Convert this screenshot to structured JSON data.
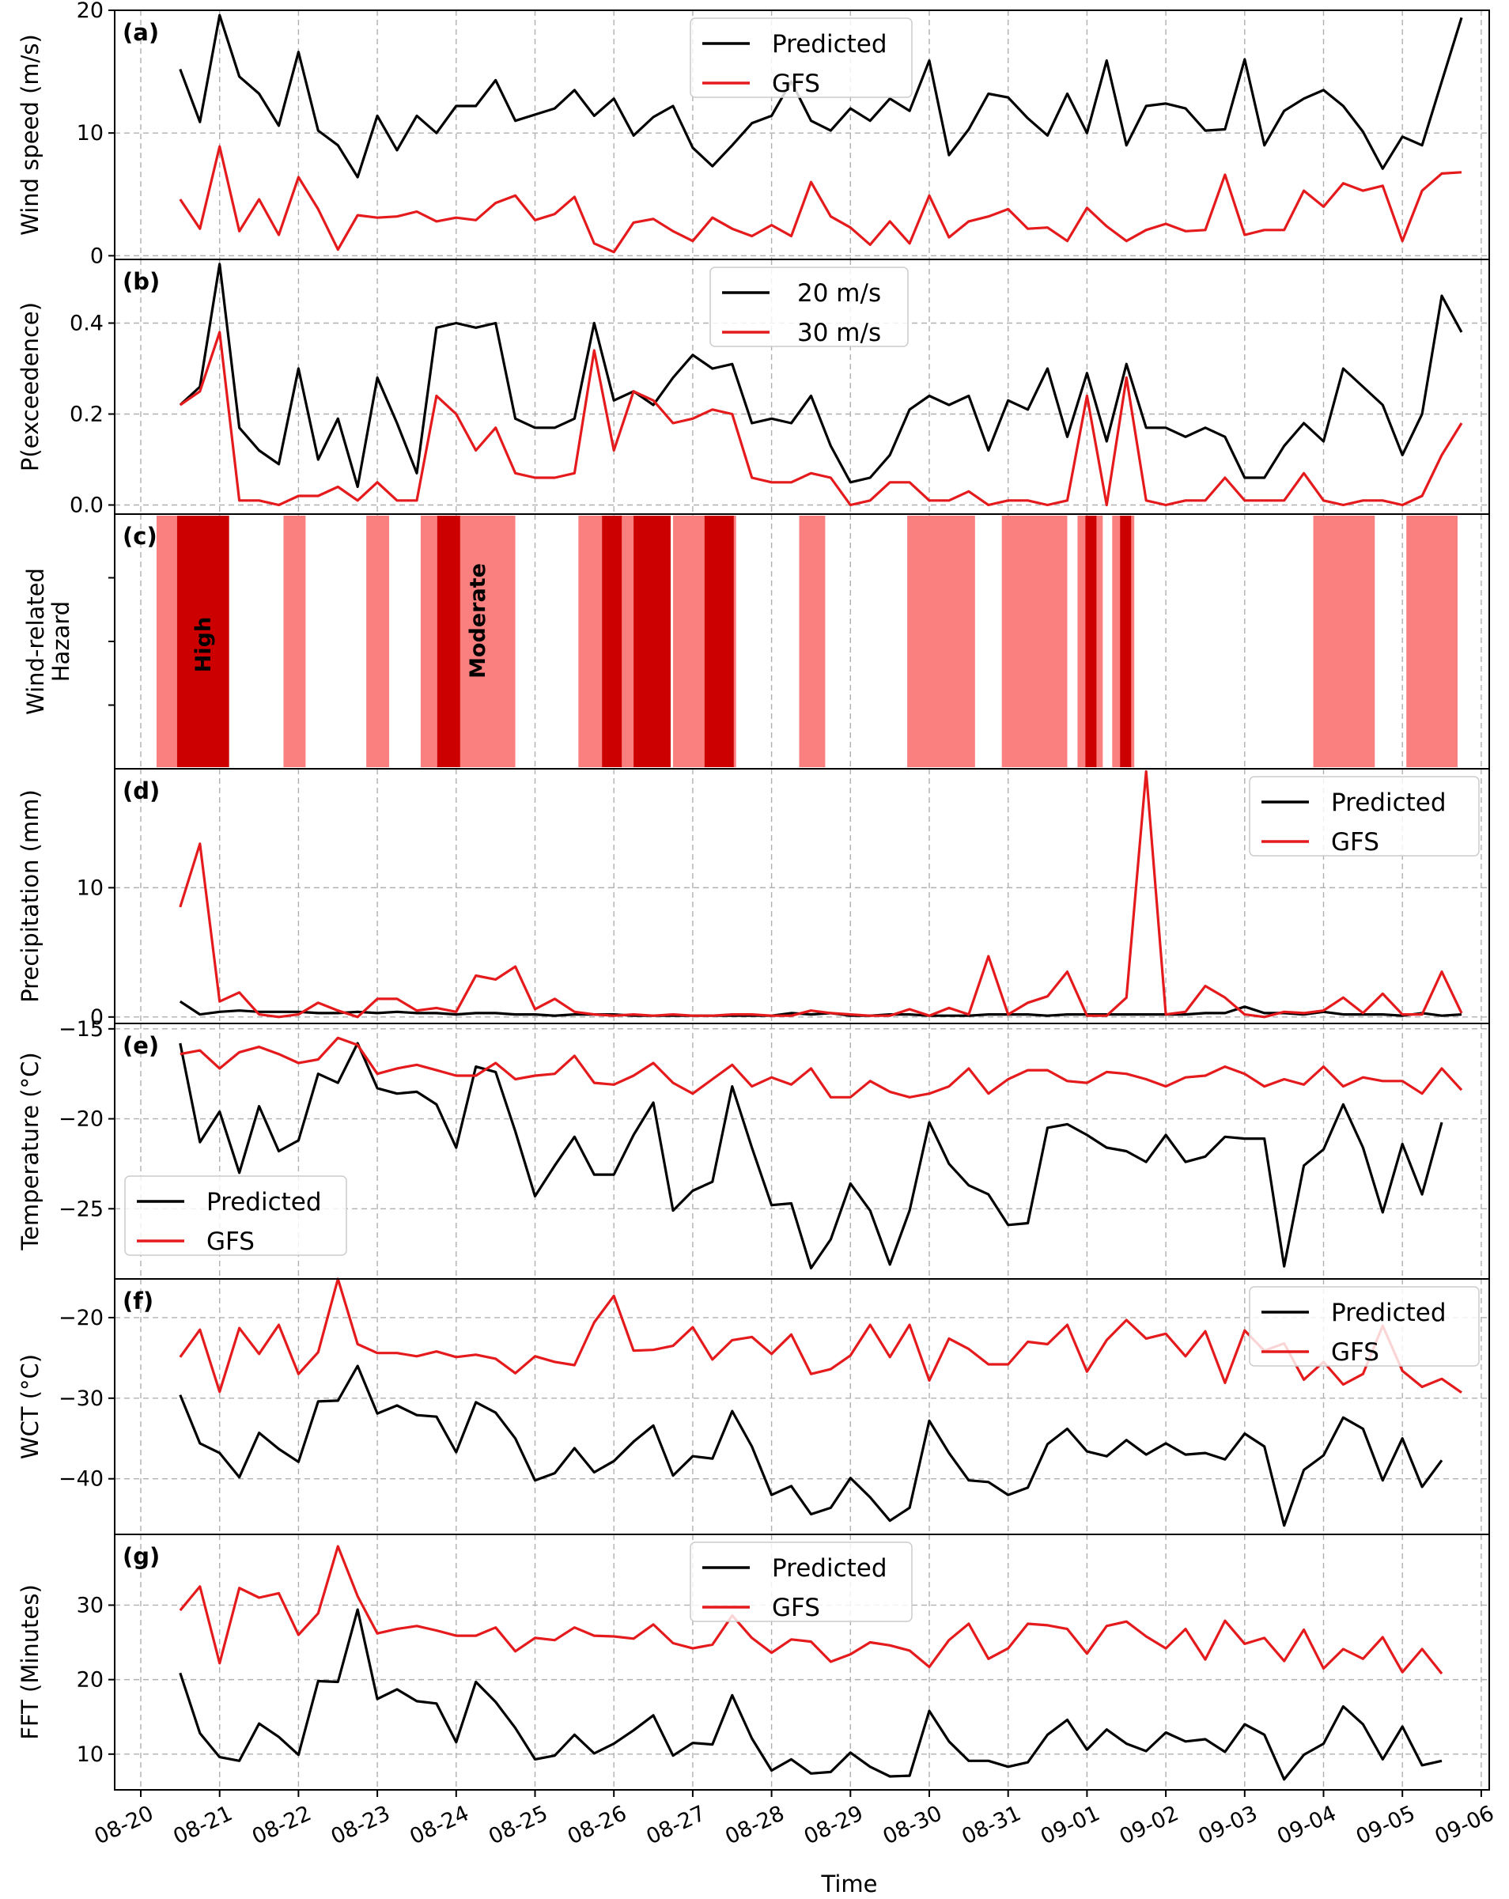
{
  "x_axis": {
    "label": "Time",
    "ticks": [
      "08-20",
      "08-21",
      "08-22",
      "08-23",
      "08-24",
      "08-25",
      "08-26",
      "08-27",
      "08-28",
      "08-29",
      "08-30",
      "08-31",
      "09-01",
      "09-02",
      "09-03",
      "09-04",
      "09-05",
      "09-06"
    ]
  },
  "colors": {
    "predicted": "#000000",
    "gfs": "#e41a1c",
    "hazard_moderate": "#fa8080",
    "hazard_high": "#cc0000"
  },
  "chart_data": [
    {
      "panel": "(a)",
      "type": "line",
      "ylabel": "Wind speed (m/s)",
      "ylim": [
        -0.3,
        20
      ],
      "yticks": [
        0,
        10,
        20
      ],
      "legend_position": "top-center",
      "x_start": "08-20 12:00",
      "x_step_hours": 6,
      "series": [
        {
          "name": "Predicted",
          "color": "#000000",
          "values": [
            15.2,
            10.9,
            19.6,
            14.6,
            13.2,
            10.6,
            16.6,
            10.2,
            9.0,
            6.4,
            11.4,
            8.6,
            11.4,
            10.0,
            12.2,
            12.2,
            14.3,
            11.0,
            11.5,
            12.0,
            13.5,
            11.4,
            12.8,
            9.8,
            11.3,
            12.2,
            8.8,
            7.3,
            9.0,
            10.8,
            11.4,
            14.2,
            11.0,
            10.2,
            12.0,
            11.0,
            12.8,
            11.8,
            15.9,
            8.2,
            10.3,
            13.2,
            12.9,
            11.2,
            9.8,
            13.2,
            10.0,
            15.9,
            9.0,
            12.2,
            12.4,
            12.0,
            10.2,
            10.3,
            16.0,
            9.0,
            11.8,
            12.8,
            13.5,
            12.2,
            10.1,
            7.1,
            9.7,
            9.0,
            14.2,
            19.4
          ]
        },
        {
          "name": "GFS",
          "color": "#e41a1c",
          "values": [
            4.6,
            2.2,
            8.9,
            2.0,
            4.6,
            1.7,
            6.4,
            3.8,
            0.5,
            3.3,
            3.1,
            3.2,
            3.6,
            2.8,
            3.1,
            2.9,
            4.3,
            4.9,
            2.9,
            3.4,
            4.8,
            1.0,
            0.3,
            2.7,
            3.0,
            2.0,
            1.2,
            3.1,
            2.2,
            1.6,
            2.5,
            1.6,
            6.0,
            3.2,
            2.3,
            0.9,
            2.8,
            1.0,
            4.9,
            1.5,
            2.8,
            3.2,
            3.8,
            2.2,
            2.3,
            1.2,
            3.9,
            2.4,
            1.2,
            2.1,
            2.6,
            2.0,
            2.1,
            6.6,
            1.7,
            2.1,
            2.1,
            5.3,
            4.0,
            5.9,
            5.3,
            5.7,
            1.2,
            5.3,
            6.7,
            6.8
          ]
        }
      ]
    },
    {
      "panel": "(b)",
      "type": "line",
      "ylabel": "P(exceedence)",
      "ylim": [
        -0.02,
        0.54
      ],
      "yticks": [
        0.0,
        0.2,
        0.4
      ],
      "ytick_labels": [
        "0.0",
        "0.2",
        "0.4"
      ],
      "legend_position": "top-center",
      "x_start": "08-20 12:00",
      "x_step_hours": 6,
      "series": [
        {
          "name": "20 m/s",
          "color": "#000000",
          "values": [
            0.22,
            0.26,
            0.53,
            0.17,
            0.12,
            0.09,
            0.3,
            0.1,
            0.19,
            0.04,
            0.28,
            0.18,
            0.07,
            0.39,
            0.4,
            0.39,
            0.4,
            0.19,
            0.17,
            0.17,
            0.19,
            0.4,
            0.23,
            0.25,
            0.22,
            0.28,
            0.33,
            0.3,
            0.31,
            0.18,
            0.19,
            0.18,
            0.24,
            0.13,
            0.05,
            0.06,
            0.11,
            0.21,
            0.24,
            0.22,
            0.24,
            0.12,
            0.23,
            0.21,
            0.3,
            0.15,
            0.29,
            0.14,
            0.31,
            0.17,
            0.17,
            0.15,
            0.17,
            0.15,
            0.06,
            0.06,
            0.13,
            0.18,
            0.14,
            0.3,
            0.26,
            0.22,
            0.11,
            0.2,
            0.46,
            0.38
          ]
        },
        {
          "name": "30 m/s",
          "color": "#e41a1c",
          "values": [
            0.22,
            0.25,
            0.38,
            0.01,
            0.01,
            0.0,
            0.02,
            0.02,
            0.04,
            0.01,
            0.05,
            0.01,
            0.01,
            0.24,
            0.2,
            0.12,
            0.17,
            0.07,
            0.06,
            0.06,
            0.07,
            0.34,
            0.12,
            0.25,
            0.23,
            0.18,
            0.19,
            0.21,
            0.2,
            0.06,
            0.05,
            0.05,
            0.07,
            0.06,
            0.0,
            0.01,
            0.05,
            0.05,
            0.01,
            0.01,
            0.03,
            0.0,
            0.01,
            0.01,
            0.0,
            0.01,
            0.24,
            0.0,
            0.28,
            0.01,
            0.0,
            0.01,
            0.01,
            0.06,
            0.01,
            0.01,
            0.01,
            0.07,
            0.01,
            0.0,
            0.01,
            0.01,
            0.0,
            0.02,
            0.11,
            0.18
          ]
        }
      ]
    },
    {
      "panel": "(c)",
      "type": "hazard-bands",
      "ylabel": "Wind-related\nHazard",
      "band_labels": {
        "high": "High",
        "moderate": "Moderate"
      },
      "moderate": [
        [
          0.2,
          0.46
        ],
        [
          1.81,
          2.09
        ],
        [
          2.86,
          3.15
        ],
        [
          3.55,
          4.75
        ],
        [
          5.55,
          6.45
        ],
        [
          6.75,
          7.55
        ],
        [
          8.35,
          8.68
        ],
        [
          9.72,
          10.58
        ],
        [
          10.92,
          11.75
        ],
        [
          11.88,
          12.2
        ],
        [
          12.32,
          12.6
        ],
        [
          14.87,
          15.65
        ],
        [
          16.05,
          16.7
        ]
      ],
      "high": [
        [
          0.46,
          1.12
        ],
        [
          3.76,
          4.05
        ],
        [
          5.85,
          6.1
        ],
        [
          6.25,
          6.72
        ],
        [
          7.15,
          7.52
        ],
        [
          11.98,
          12.12
        ],
        [
          12.42,
          12.56
        ]
      ]
    },
    {
      "panel": "(d)",
      "type": "line",
      "ylabel": "Precipitation (mm)",
      "ylim": [
        -0.5,
        19.2
      ],
      "yticks": [
        0,
        10
      ],
      "legend_position": "top-right",
      "x_start": "08-20 12:00",
      "x_step_hours": 6,
      "series": [
        {
          "name": "Predicted",
          "color": "#000000",
          "values": [
            1.2,
            0.2,
            0.4,
            0.5,
            0.4,
            0.4,
            0.4,
            0.3,
            0.3,
            0.4,
            0.3,
            0.4,
            0.3,
            0.3,
            0.2,
            0.3,
            0.3,
            0.2,
            0.2,
            0.1,
            0.2,
            0.2,
            0.2,
            0.1,
            0.1,
            0.1,
            0.1,
            0.1,
            0.1,
            0.1,
            0.1,
            0.3,
            0.2,
            0.3,
            0.1,
            0.1,
            0.2,
            0.2,
            0.1,
            0.1,
            0.1,
            0.2,
            0.2,
            0.2,
            0.1,
            0.2,
            0.2,
            0.2,
            0.2,
            0.2,
            0.2,
            0.2,
            0.3,
            0.3,
            0.8,
            0.3,
            0.3,
            0.2,
            0.4,
            0.2,
            0.2,
            0.2,
            0.1,
            0.3,
            0.1,
            0.2
          ]
        },
        {
          "name": "GFS",
          "color": "#e41a1c",
          "values": [
            8.5,
            13.4,
            1.2,
            1.9,
            0.2,
            0.0,
            0.2,
            1.1,
            0.5,
            0.0,
            1.4,
            1.4,
            0.5,
            0.7,
            0.4,
            3.2,
            2.9,
            3.9,
            0.6,
            1.4,
            0.4,
            0.2,
            0.1,
            0.2,
            0.1,
            0.2,
            0.1,
            0.1,
            0.2,
            0.2,
            0.1,
            0.1,
            0.5,
            0.3,
            0.2,
            0.1,
            0.1,
            0.6,
            0.1,
            0.7,
            0.2,
            4.7,
            0.2,
            1.1,
            1.6,
            3.5,
            0.1,
            0.1,
            1.5,
            19.0,
            0.2,
            0.4,
            2.4,
            1.5,
            0.2,
            0.0,
            0.4,
            0.3,
            0.5,
            1.5,
            0.3,
            1.8,
            0.2,
            0.2,
            3.5,
            0.3
          ]
        }
      ]
    },
    {
      "panel": "(e)",
      "type": "line",
      "ylabel": "Temperature (°C)",
      "ylim": [
        -28.9,
        -14.7
      ],
      "yticks": [
        -25,
        -20,
        -15
      ],
      "legend_position": "lower-left",
      "x_start": "08-20 12:00",
      "x_step_hours": 6,
      "series": [
        {
          "name": "Predicted",
          "color": "#000000",
          "values": [
            -15.8,
            -21.3,
            -19.6,
            -23.0,
            -19.3,
            -21.8,
            -21.2,
            -17.5,
            -18.0,
            -15.8,
            -18.3,
            -18.6,
            -18.5,
            -19.2,
            -21.6,
            -17.1,
            -17.4,
            -20.7,
            -24.3,
            -22.6,
            -21.0,
            -23.1,
            -23.1,
            -20.9,
            -19.1,
            -25.1,
            -24.0,
            -23.5,
            -18.2,
            -21.6,
            -24.8,
            -24.7,
            -28.3,
            -26.7,
            -23.6,
            -25.1,
            -28.1,
            -25.1,
            -20.2,
            -22.5,
            -23.7,
            -24.2,
            -25.9,
            -25.8,
            -20.5,
            -20.3,
            -20.9,
            -21.6,
            -21.8,
            -22.4,
            -20.9,
            -22.4,
            -22.1,
            -21.0,
            -21.1,
            -21.1,
            -28.2,
            -22.6,
            -21.7,
            -19.2,
            -21.6,
            -25.2,
            -21.4,
            -24.2,
            -20.2
          ]
        },
        {
          "name": "GFS",
          "color": "#e41a1c",
          "values": [
            -16.4,
            -16.2,
            -17.2,
            -16.3,
            -16.0,
            -16.4,
            -16.9,
            -16.7,
            -15.5,
            -15.9,
            -17.5,
            -17.2,
            -17.0,
            -17.3,
            -17.6,
            -17.6,
            -16.9,
            -17.8,
            -17.6,
            -17.5,
            -16.5,
            -18.0,
            -18.1,
            -17.6,
            -16.9,
            -18.0,
            -18.6,
            -17.8,
            -17.0,
            -18.2,
            -17.7,
            -18.1,
            -17.2,
            -18.8,
            -18.8,
            -17.9,
            -18.5,
            -18.8,
            -18.6,
            -18.2,
            -17.2,
            -18.6,
            -17.8,
            -17.3,
            -17.3,
            -17.9,
            -18.0,
            -17.4,
            -17.5,
            -17.8,
            -18.2,
            -17.7,
            -17.6,
            -17.1,
            -17.5,
            -18.2,
            -17.8,
            -18.1,
            -17.1,
            -18.2,
            -17.7,
            -17.9,
            -17.9,
            -18.6,
            -17.2,
            -18.4
          ]
        }
      ]
    },
    {
      "panel": "(f)",
      "type": "line",
      "ylabel": "WCT (°C)",
      "ylim": [
        -46.9,
        -15.2
      ],
      "yticks": [
        -40,
        -30,
        -20
      ],
      "legend_position": "top-right",
      "x_start": "08-20 12:00",
      "x_step_hours": 6,
      "series": [
        {
          "name": "Predicted",
          "color": "#000000",
          "values": [
            -29.6,
            -35.6,
            -36.8,
            -39.8,
            -34.3,
            -36.3,
            -37.9,
            -30.4,
            -30.3,
            -26.0,
            -31.9,
            -30.9,
            -32.1,
            -32.3,
            -36.7,
            -30.5,
            -31.8,
            -35.0,
            -40.2,
            -39.3,
            -36.2,
            -39.2,
            -37.8,
            -35.4,
            -33.4,
            -39.6,
            -37.2,
            -37.5,
            -31.6,
            -36.0,
            -42.0,
            -40.9,
            -44.4,
            -43.6,
            -39.9,
            -42.3,
            -45.2,
            -43.6,
            -32.8,
            -36.8,
            -40.2,
            -40.4,
            -42.0,
            -41.1,
            -35.7,
            -33.8,
            -36.6,
            -37.2,
            -35.2,
            -37.0,
            -35.6,
            -37.0,
            -36.8,
            -37.6,
            -34.4,
            -36.0,
            -45.8,
            -38.9,
            -37.1,
            -32.4,
            -33.8,
            -40.2,
            -35.0,
            -41.0,
            -37.7
          ]
        },
        {
          "name": "GFS",
          "color": "#e41a1c",
          "values": [
            -24.9,
            -21.5,
            -29.2,
            -21.3,
            -24.5,
            -20.9,
            -27.0,
            -24.3,
            -15.2,
            -23.3,
            -24.4,
            -24.4,
            -24.8,
            -24.2,
            -24.9,
            -24.6,
            -25.1,
            -26.9,
            -24.8,
            -25.5,
            -25.9,
            -20.6,
            -17.3,
            -24.1,
            -24.0,
            -23.5,
            -21.2,
            -25.2,
            -22.8,
            -22.4,
            -24.5,
            -22.1,
            -27.0,
            -26.4,
            -24.7,
            -20.9,
            -24.9,
            -20.9,
            -27.8,
            -22.6,
            -23.9,
            -25.8,
            -25.8,
            -23.0,
            -23.3,
            -20.9,
            -26.7,
            -22.8,
            -20.3,
            -22.6,
            -22.0,
            -24.8,
            -21.7,
            -28.1,
            -21.6,
            -24.1,
            -23.2,
            -27.7,
            -25.5,
            -28.3,
            -27.0,
            -21.0,
            -26.6,
            -28.6,
            -27.6,
            -29.3
          ]
        }
      ]
    },
    {
      "panel": "(g)",
      "type": "line",
      "ylabel": "FFT (Minutes)",
      "ylim": [
        5.2,
        39.5
      ],
      "yticks": [
        10,
        20,
        30
      ],
      "legend_position": "top-center",
      "x_start": "08-20 12:00",
      "x_step_hours": 6,
      "series": [
        {
          "name": "Predicted",
          "color": "#000000",
          "values": [
            20.9,
            12.8,
            9.6,
            9.1,
            14.1,
            12.3,
            9.9,
            19.8,
            19.7,
            29.4,
            17.4,
            18.7,
            17.1,
            16.8,
            11.6,
            19.7,
            17.0,
            13.5,
            9.3,
            9.8,
            12.6,
            10.1,
            11.4,
            13.2,
            15.2,
            9.8,
            11.5,
            11.3,
            17.9,
            12.1,
            7.8,
            9.3,
            7.4,
            7.6,
            10.2,
            8.3,
            7.0,
            7.1,
            15.8,
            11.7,
            9.1,
            9.1,
            8.3,
            8.9,
            12.6,
            14.6,
            10.6,
            13.3,
            11.4,
            10.4,
            12.9,
            11.7,
            12.0,
            10.3,
            14.0,
            12.6,
            6.6,
            9.9,
            11.4,
            16.4,
            14.0,
            9.3,
            13.7,
            8.5,
            9.1
          ]
        },
        {
          "name": "GFS",
          "color": "#e41a1c",
          "values": [
            29.3,
            32.5,
            22.2,
            32.3,
            31.0,
            31.6,
            26.0,
            28.9,
            37.9,
            31.2,
            26.2,
            26.8,
            27.2,
            26.6,
            25.9,
            25.9,
            27.0,
            23.8,
            25.6,
            25.3,
            27.0,
            25.9,
            25.8,
            25.5,
            27.4,
            24.9,
            24.2,
            24.7,
            28.6,
            25.6,
            23.6,
            25.4,
            25.1,
            22.4,
            23.4,
            25.0,
            24.6,
            23.9,
            21.7,
            25.3,
            27.5,
            22.8,
            24.2,
            27.5,
            27.3,
            26.8,
            23.5,
            27.2,
            27.8,
            25.8,
            24.2,
            26.8,
            22.7,
            27.9,
            24.8,
            25.6,
            22.5,
            26.7,
            21.5,
            24.1,
            22.8,
            25.7,
            21.0,
            24.1,
            20.8
          ]
        }
      ]
    }
  ]
}
